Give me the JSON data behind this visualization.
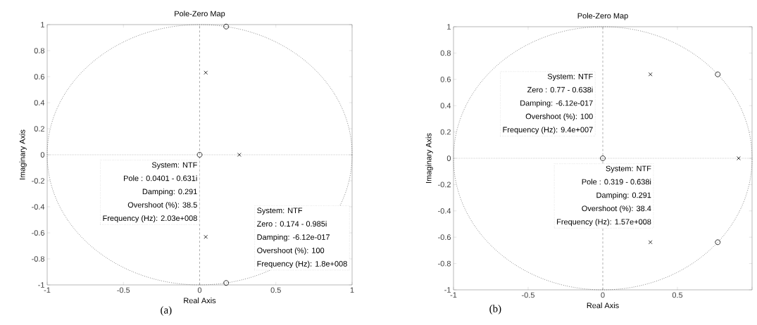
{
  "chart_data": [
    {
      "type": "scatter",
      "title": "Pole-Zero Map",
      "xlabel": "Real Axis",
      "ylabel": "Imaginary Axis",
      "xlim": [
        -1,
        1
      ],
      "ylim": [
        -1,
        1
      ],
      "xticks": [
        -1,
        -0.5,
        0,
        0.5,
        1
      ],
      "yticks": [
        -1,
        -0.8,
        -0.6,
        -0.4,
        -0.2,
        0,
        0.2,
        0.4,
        0.6,
        0.8,
        1
      ],
      "ref_lines": [
        {
          "axis": "x",
          "value": 0,
          "line_style": "dashed"
        },
        {
          "axis": "y",
          "value": 0,
          "line_style": "dotted"
        }
      ],
      "series": [
        {
          "marker": "cross",
          "color": "#000000",
          "x": [
            0.0401,
            0.0401,
            0.26
          ],
          "values": [
            0.631,
            -0.631,
            0
          ]
        },
        {
          "marker": "circle",
          "color": "#000000",
          "x": [
            0,
            0.174,
            0.174
          ],
          "values": [
            0,
            0.985,
            -0.985
          ]
        }
      ],
      "annotations": [
        "System: NTF",
        "Pole : 0.0401 - 0.631i",
        "Damping: 0.291",
        "Overshoot (%): 38.5",
        "Frequency (Hz): 2.03e+008",
        "System: NTF",
        "Zero : 0.174 - 0.985i",
        "Damping: -6.12e-017",
        "Overshoot (%): 100",
        "Frequency (Hz): 1.8e+008",
        "(a)"
      ]
    },
    {
      "type": "scatter",
      "title": "Pole-Zero Map",
      "xlabel": "Real Axis",
      "ylabel": "Imaginary Axis",
      "xlim": [
        -1,
        1
      ],
      "ylim": [
        -1,
        1
      ],
      "xticks": [
        -1,
        -0.5,
        0,
        0.5,
        {
          "value": 1,
          "label": null
        }
      ],
      "yticks": [
        -1,
        -0.8,
        -0.6,
        -0.4,
        -0.2,
        0,
        0.2,
        0.4,
        0.6,
        0.8,
        1
      ],
      "ref_lines": [
        {
          "axis": "x",
          "value": 0,
          "line_style": "dashed"
        },
        {
          "axis": "y",
          "value": 0,
          "line_style": "dotted"
        }
      ],
      "series": [
        {
          "marker": "cross",
          "color": "#000000",
          "x": [
            0.319,
            0.319,
            0.91
          ],
          "values": [
            0.638,
            -0.638,
            0
          ]
        },
        {
          "marker": "circle",
          "color": "#000000",
          "x": [
            0,
            0.77,
            0.77
          ],
          "values": [
            0,
            0.638,
            -0.638
          ]
        }
      ],
      "annotations": [
        "System: NTF",
        "Pole : 0.319 - 0.638i",
        "Damping: 0.291",
        "Overshoot (%): 38.4",
        "Frequency (Hz): 1.57e+008",
        "System: NTF",
        "Zero : 0.77 - 0.638i",
        "Damping: -6.12e-017",
        "Overshoot (%): 100",
        "Frequency (Hz): 9.4e+007",
        "(b)"
      ]
    }
  ]
}
